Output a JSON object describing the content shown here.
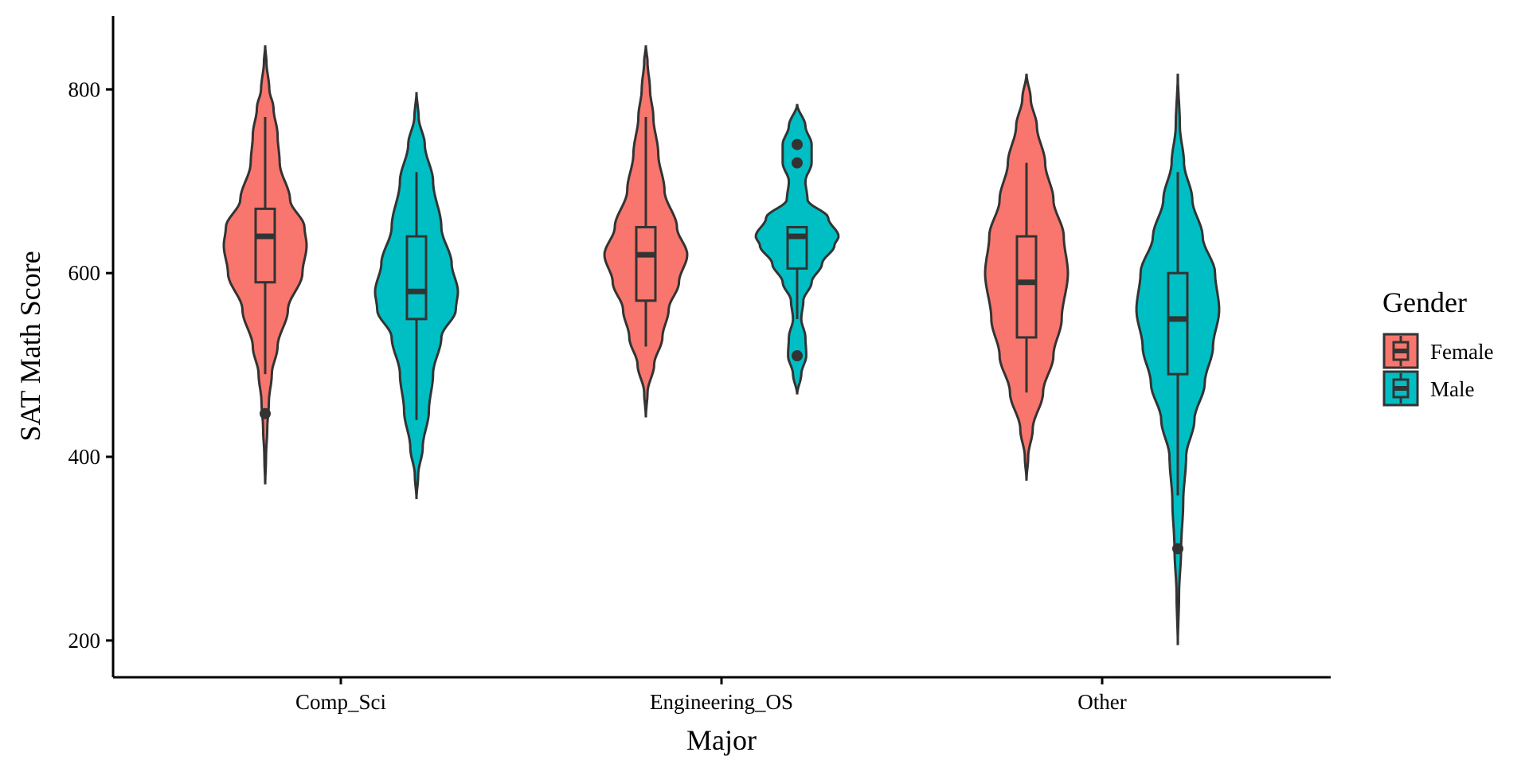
{
  "chart_data": {
    "type": "violin",
    "xlabel": "Major",
    "ylabel": "SAT Math Score",
    "categories": [
      "Comp_Sci",
      "Engineering_OS",
      "Other"
    ],
    "ylim": [
      160,
      880
    ],
    "yticks": [
      200,
      400,
      600,
      800
    ],
    "grid": false,
    "legend": {
      "title": "Gender",
      "placement": "right",
      "entries": [
        {
          "name": "Female",
          "color": "#F8766D"
        },
        {
          "name": "Male",
          "color": "#00BFC4"
        }
      ]
    },
    "series": [
      {
        "name": "Female",
        "color": "#F8766D",
        "groups": [
          {
            "category": "Comp_Sci",
            "box": {
              "whisker_low": 490,
              "q1": 590,
              "median": 640,
              "q3": 670,
              "whisker_high": 770
            },
            "outliers": [
              447
            ],
            "violin": {
              "min": 370,
              "max": 848,
              "profile": [
                [
                  370,
                  0.0
                ],
                [
                  400,
                  0.02
                ],
                [
                  430,
                  0.05
                ],
                [
                  460,
                  0.09
                ],
                [
                  490,
                  0.16
                ],
                [
                  520,
                  0.3
                ],
                [
                  560,
                  0.55
                ],
                [
                  600,
                  0.9
                ],
                [
                  630,
                  1.0
                ],
                [
                  650,
                  0.95
                ],
                [
                  680,
                  0.6
                ],
                [
                  720,
                  0.35
                ],
                [
                  750,
                  0.3
                ],
                [
                  780,
                  0.2
                ],
                [
                  800,
                  0.1
                ],
                [
                  830,
                  0.03
                ],
                [
                  848,
                  0.0
                ]
              ]
            }
          },
          {
            "category": "Engineering_OS",
            "box": {
              "whisker_low": 520,
              "q1": 570,
              "median": 620,
              "q3": 650,
              "whisker_high": 770
            },
            "outliers": [],
            "violin": {
              "min": 443,
              "max": 848,
              "profile": [
                [
                  443,
                  0.0
                ],
                [
                  470,
                  0.04
                ],
                [
                  500,
                  0.2
                ],
                [
                  530,
                  0.4
                ],
                [
                  560,
                  0.55
                ],
                [
                  590,
                  0.8
                ],
                [
                  620,
                  1.0
                ],
                [
                  650,
                  0.75
                ],
                [
                  690,
                  0.45
                ],
                [
                  730,
                  0.3
                ],
                [
                  770,
                  0.18
                ],
                [
                  800,
                  0.1
                ],
                [
                  830,
                  0.04
                ],
                [
                  848,
                  0.0
                ]
              ]
            }
          },
          {
            "category": "Other",
            "box": {
              "whisker_low": 470,
              "q1": 530,
              "median": 590,
              "q3": 640,
              "whisker_high": 720
            },
            "outliers": [],
            "violin": {
              "min": 374,
              "max": 817,
              "profile": [
                [
                  374,
                  0.0
                ],
                [
                  400,
                  0.04
                ],
                [
                  430,
                  0.15
                ],
                [
                  470,
                  0.4
                ],
                [
                  510,
                  0.65
                ],
                [
                  550,
                  0.85
                ],
                [
                  600,
                  1.0
                ],
                [
                  640,
                  0.9
                ],
                [
                  680,
                  0.65
                ],
                [
                  720,
                  0.45
                ],
                [
                  760,
                  0.25
                ],
                [
                  790,
                  0.1
                ],
                [
                  817,
                  0.0
                ]
              ]
            }
          }
        ]
      },
      {
        "name": "Male",
        "color": "#00BFC4",
        "groups": [
          {
            "category": "Comp_Sci",
            "box": {
              "whisker_low": 440,
              "q1": 550,
              "median": 580,
              "q3": 640,
              "whisker_high": 710
            },
            "outliers": [],
            "violin": {
              "min": 354,
              "max": 797,
              "profile": [
                [
                  354,
                  0.0
                ],
                [
                  380,
                  0.04
                ],
                [
                  410,
                  0.15
                ],
                [
                  450,
                  0.3
                ],
                [
                  490,
                  0.4
                ],
                [
                  530,
                  0.6
                ],
                [
                  560,
                  0.95
                ],
                [
                  580,
                  1.0
                ],
                [
                  610,
                  0.85
                ],
                [
                  650,
                  0.6
                ],
                [
                  700,
                  0.4
                ],
                [
                  740,
                  0.2
                ],
                [
                  770,
                  0.05
                ],
                [
                  797,
                  0.0
                ]
              ]
            }
          },
          {
            "category": "Engineering_OS",
            "box": {
              "whisker_low": 550,
              "q1": 605,
              "median": 640,
              "q3": 650,
              "whisker_high": 650
            },
            "outliers": [
              510,
              720,
              740
            ],
            "violin": {
              "min": 468,
              "max": 784,
              "profile": [
                [
                  468,
                  0.0
                ],
                [
                  490,
                  0.1
                ],
                [
                  510,
                  0.22
                ],
                [
                  530,
                  0.2
                ],
                [
                  550,
                  0.1
                ],
                [
                  570,
                  0.15
                ],
                [
                  590,
                  0.35
                ],
                [
                  610,
                  0.6
                ],
                [
                  630,
                  0.9
                ],
                [
                  640,
                  1.0
                ],
                [
                  660,
                  0.75
                ],
                [
                  680,
                  0.25
                ],
                [
                  700,
                  0.2
                ],
                [
                  720,
                  0.35
                ],
                [
                  740,
                  0.35
                ],
                [
                  760,
                  0.2
                ],
                [
                  784,
                  0.0
                ]
              ]
            }
          },
          {
            "category": "Other",
            "box": {
              "whisker_low": 358,
              "q1": 490,
              "median": 550,
              "q3": 600,
              "whisker_high": 710
            },
            "outliers": [
              300
            ],
            "violin": {
              "min": 195,
              "max": 817,
              "profile": [
                [
                  195,
                  0.0
                ],
                [
                  250,
                  0.03
                ],
                [
                  300,
                  0.08
                ],
                [
                  350,
                  0.13
                ],
                [
                  400,
                  0.2
                ],
                [
                  440,
                  0.4
                ],
                [
                  480,
                  0.65
                ],
                [
                  520,
                  0.85
                ],
                [
                  560,
                  1.0
                ],
                [
                  600,
                  0.9
                ],
                [
                  640,
                  0.6
                ],
                [
                  680,
                  0.35
                ],
                [
                  720,
                  0.15
                ],
                [
                  760,
                  0.05
                ],
                [
                  817,
                  0.0
                ]
              ]
            }
          }
        ]
      }
    ]
  }
}
